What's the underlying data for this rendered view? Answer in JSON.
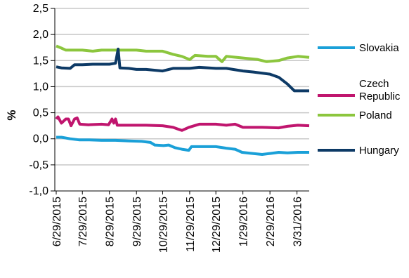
{
  "chart_data": {
    "type": "line",
    "title": "",
    "xlabel": "",
    "ylabel": "%",
    "ylim": [
      -1.0,
      2.5
    ],
    "yticks": [
      -1.0,
      -0.5,
      0.0,
      0.5,
      1.0,
      1.5,
      2.0,
      2.5
    ],
    "ytick_labels": [
      "-1,0",
      "-0,5",
      "0,0",
      "0,5",
      "1,0",
      "1,5",
      "2,0",
      "2,5"
    ],
    "xlim": [
      "2015-06-29",
      "2016-04-14"
    ],
    "xticks": [
      "2015-06-29",
      "2015-07-29",
      "2015-08-29",
      "2015-09-29",
      "2015-10-29",
      "2015-11-29",
      "2015-12-29",
      "2016-01-29",
      "2016-02-29",
      "2016-03-31"
    ],
    "xtick_labels": [
      "6/29/2015",
      "7/29/2015",
      "8/29/2015",
      "9/29/2015",
      "10/29/2015",
      "11/29/2015",
      "12/29/2015",
      "1/29/2016",
      "2/29/2016",
      "3/31/2016"
    ],
    "grid": "horizontal",
    "legend_position": "right",
    "series": [
      {
        "name": "Slovakia",
        "color": "#1aa0d8",
        "points": [
          [
            "2015-06-29",
            0.03
          ],
          [
            "2015-07-05",
            0.03
          ],
          [
            "2015-07-15",
            0.0
          ],
          [
            "2015-07-25",
            -0.02
          ],
          [
            "2015-08-05",
            -0.02
          ],
          [
            "2015-08-20",
            -0.03
          ],
          [
            "2015-09-05",
            -0.03
          ],
          [
            "2015-09-20",
            -0.04
          ],
          [
            "2015-10-05",
            -0.05
          ],
          [
            "2015-10-15",
            -0.07
          ],
          [
            "2015-10-20",
            -0.12
          ],
          [
            "2015-10-30",
            -0.13
          ],
          [
            "2015-11-05",
            -0.12
          ],
          [
            "2015-11-12",
            -0.17
          ],
          [
            "2015-11-20",
            -0.2
          ],
          [
            "2015-11-28",
            -0.22
          ],
          [
            "2015-12-01",
            -0.15
          ],
          [
            "2015-12-15",
            -0.15
          ],
          [
            "2015-12-29",
            -0.15
          ],
          [
            "2016-01-10",
            -0.18
          ],
          [
            "2016-01-20",
            -0.2
          ],
          [
            "2016-01-28",
            -0.26
          ],
          [
            "2016-02-08",
            -0.28
          ],
          [
            "2016-02-20",
            -0.3
          ],
          [
            "2016-03-01",
            -0.28
          ],
          [
            "2016-03-10",
            -0.26
          ],
          [
            "2016-03-20",
            -0.27
          ],
          [
            "2016-04-01",
            -0.26
          ],
          [
            "2016-04-14",
            -0.26
          ]
        ]
      },
      {
        "name": "Czech Republic",
        "color": "#c0156e",
        "points": [
          [
            "2015-06-29",
            0.38
          ],
          [
            "2015-07-01",
            0.42
          ],
          [
            "2015-07-05",
            0.3
          ],
          [
            "2015-07-10",
            0.38
          ],
          [
            "2015-07-13",
            0.38
          ],
          [
            "2015-07-16",
            0.25
          ],
          [
            "2015-07-20",
            0.38
          ],
          [
            "2015-07-23",
            0.4
          ],
          [
            "2015-07-26",
            0.28
          ],
          [
            "2015-08-05",
            0.27
          ],
          [
            "2015-08-20",
            0.28
          ],
          [
            "2015-08-28",
            0.27
          ],
          [
            "2015-09-01",
            0.38
          ],
          [
            "2015-09-03",
            0.3
          ],
          [
            "2015-09-05",
            0.38
          ],
          [
            "2015-09-07",
            0.26
          ],
          [
            "2015-09-20",
            0.26
          ],
          [
            "2015-10-10",
            0.26
          ],
          [
            "2015-10-29",
            0.25
          ],
          [
            "2015-11-10",
            0.22
          ],
          [
            "2015-11-20",
            0.16
          ],
          [
            "2015-11-28",
            0.22
          ],
          [
            "2015-12-10",
            0.28
          ],
          [
            "2015-12-29",
            0.28
          ],
          [
            "2016-01-10",
            0.26
          ],
          [
            "2016-01-20",
            0.28
          ],
          [
            "2016-01-29",
            0.22
          ],
          [
            "2016-02-20",
            0.22
          ],
          [
            "2016-03-10",
            0.21
          ],
          [
            "2016-03-20",
            0.24
          ],
          [
            "2016-04-01",
            0.26
          ],
          [
            "2016-04-14",
            0.25
          ]
        ]
      },
      {
        "name": "Poland",
        "color": "#8cc63e",
        "points": [
          [
            "2015-06-29",
            1.78
          ],
          [
            "2015-07-05",
            1.74
          ],
          [
            "2015-07-10",
            1.7
          ],
          [
            "2015-07-20",
            1.7
          ],
          [
            "2015-07-29",
            1.7
          ],
          [
            "2015-08-10",
            1.68
          ],
          [
            "2015-08-20",
            1.7
          ],
          [
            "2015-08-29",
            1.7
          ],
          [
            "2015-09-10",
            1.7
          ],
          [
            "2015-09-29",
            1.7
          ],
          [
            "2015-10-10",
            1.68
          ],
          [
            "2015-10-29",
            1.68
          ],
          [
            "2015-11-10",
            1.62
          ],
          [
            "2015-11-20",
            1.58
          ],
          [
            "2015-11-29",
            1.52
          ],
          [
            "2015-12-05",
            1.6
          ],
          [
            "2015-12-20",
            1.58
          ],
          [
            "2015-12-29",
            1.58
          ],
          [
            "2016-01-05",
            1.48
          ],
          [
            "2016-01-10",
            1.58
          ],
          [
            "2016-01-29",
            1.55
          ],
          [
            "2016-02-15",
            1.52
          ],
          [
            "2016-02-25",
            1.48
          ],
          [
            "2016-03-10",
            1.5
          ],
          [
            "2016-03-20",
            1.55
          ],
          [
            "2016-04-01",
            1.58
          ],
          [
            "2016-04-14",
            1.56
          ]
        ]
      },
      {
        "name": "Hungary",
        "color": "#0d3a66",
        "points": [
          [
            "2015-06-29",
            1.38
          ],
          [
            "2015-07-05",
            1.36
          ],
          [
            "2015-07-15",
            1.35
          ],
          [
            "2015-07-20",
            1.42
          ],
          [
            "2015-07-29",
            1.42
          ],
          [
            "2015-08-10",
            1.43
          ],
          [
            "2015-08-29",
            1.43
          ],
          [
            "2015-09-05",
            1.45
          ],
          [
            "2015-09-08",
            1.72
          ],
          [
            "2015-09-10",
            1.36
          ],
          [
            "2015-09-20",
            1.35
          ],
          [
            "2015-09-29",
            1.33
          ],
          [
            "2015-10-10",
            1.33
          ],
          [
            "2015-10-29",
            1.3
          ],
          [
            "2015-11-10",
            1.35
          ],
          [
            "2015-11-29",
            1.35
          ],
          [
            "2015-12-10",
            1.37
          ],
          [
            "2015-12-29",
            1.35
          ],
          [
            "2016-01-10",
            1.35
          ],
          [
            "2016-01-29",
            1.3
          ],
          [
            "2016-02-10",
            1.28
          ],
          [
            "2016-02-29",
            1.24
          ],
          [
            "2016-03-10",
            1.18
          ],
          [
            "2016-03-20",
            1.05
          ],
          [
            "2016-03-28",
            0.92
          ],
          [
            "2016-04-14",
            0.92
          ]
        ]
      }
    ]
  }
}
